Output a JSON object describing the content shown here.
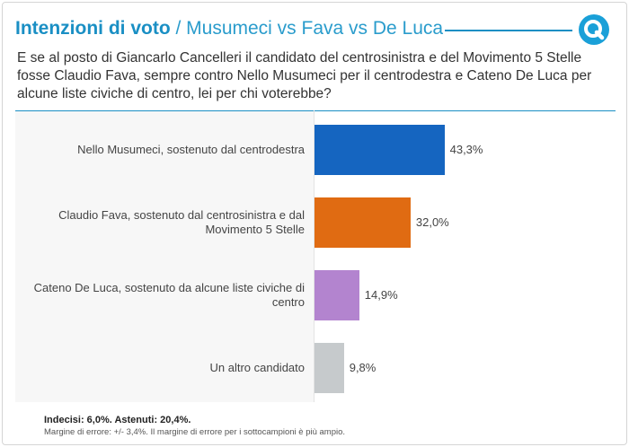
{
  "header": {
    "title": "Intenzioni di voto",
    "subtitle": " / Musumeci vs Fava vs De Luca",
    "logo_icon": "quorum-q-logo-icon",
    "accent_color": "#1a8fc4"
  },
  "question": "E se al posto di Giancarlo Cancelleri il candidato del centrosinistra e del Movimento 5 Stelle fosse Claudio Fava, sempre contro Nello Musumeci per il centrodestra e Cateno De Luca per alcune liste civiche di centro, lei per chi voterebbe?",
  "chart_data": {
    "type": "bar",
    "orientation": "horizontal",
    "categories": [
      "Nello Musumeci, sostenuto dal centrodestra",
      "Claudio Fava, sostenuto dal centrosinistra e dal Movimento 5 Stelle",
      "Cateno De Luca, sostenuto da alcune liste civiche di centro",
      "Un altro candidato"
    ],
    "values": [
      43.3,
      32.0,
      14.9,
      9.8
    ],
    "value_labels": [
      "43,3%",
      "32,0%",
      "14,9%",
      "9,8%"
    ],
    "colors": [
      "#1565c0",
      "#e06b12",
      "#b384cf",
      "#c6cacc"
    ],
    "xlim": [
      0,
      100
    ],
    "grid": false,
    "legend": "none"
  },
  "footer": {
    "summary": "Indecisi: 6,0%. Astenuti: 20,4%.",
    "note": "Margine di errore: +/- 3,4%. Il margine di errore per i sottocampioni è più ampio."
  }
}
